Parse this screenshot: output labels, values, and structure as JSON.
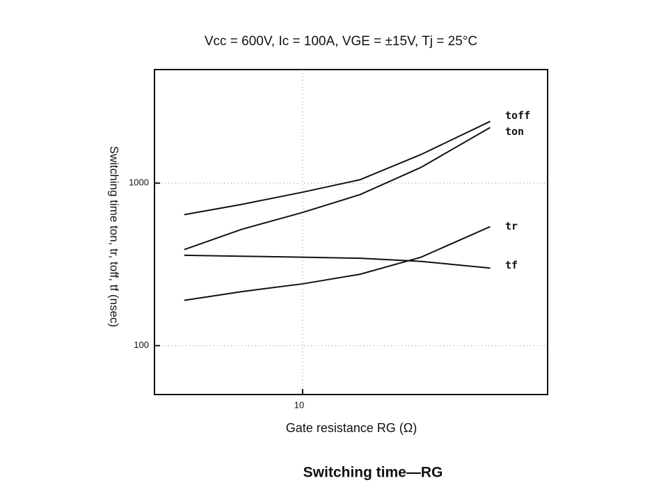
{
  "chart_data": {
    "type": "line",
    "title": "Vcc = 600V, Ic = 100A, VGE = ±15V, Tj = 25°C",
    "caption": "Switching time—RG",
    "x_label": "Gate resistance RG (Ω)",
    "y_label": "Switching time ton, tr, toff, tf (nsec)",
    "x": [
      5,
      7,
      10,
      14,
      20,
      30
    ],
    "series": [
      {
        "name": "toff",
        "color": "#111111",
        "values": [
          640,
          740,
          880,
          1050,
          1500,
          2400
        ]
      },
      {
        "name": "ton",
        "color": "#111111",
        "values": [
          390,
          520,
          660,
          850,
          1250,
          2200
        ]
      },
      {
        "name": "tr",
        "color": "#111111",
        "values": [
          190,
          215,
          240,
          275,
          350,
          540
        ]
      },
      {
        "name": "tf",
        "color": "#111111",
        "values": [
          360,
          355,
          350,
          345,
          330,
          300
        ]
      }
    ],
    "xlim": [
      4.2,
      42
    ],
    "xticks": [
      10
    ],
    "x_log": true,
    "ylim": [
      50,
      5000
    ],
    "yticks": [
      100,
      1000
    ],
    "y_log": true,
    "grid": true
  }
}
